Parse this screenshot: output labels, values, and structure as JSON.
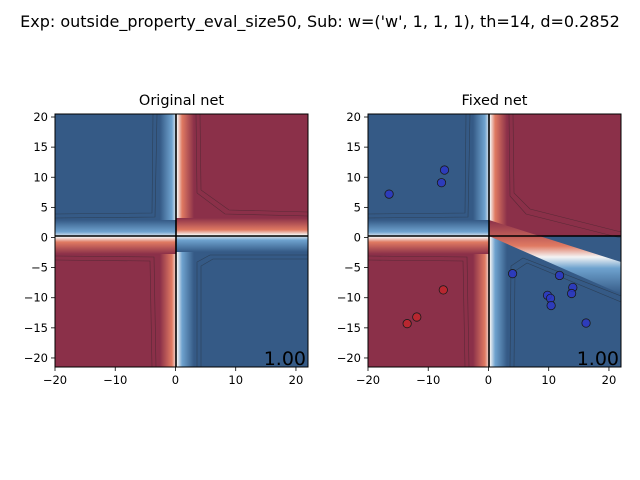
{
  "suptitle": "Exp: outside_property_eval_size50, Sub: w=('w', 1, 1, 1), th=14, d=0.2852",
  "colors": {
    "red": "#8b3049",
    "blue": "#355a86",
    "red_point": "#c0262b",
    "blue_point": "#2b37c4"
  },
  "chart_data": [
    {
      "type": "contour",
      "title": "Original net",
      "xlim": [
        -20,
        22
      ],
      "ylim": [
        -21.5,
        20.5
      ],
      "xticks": [
        -20,
        -10,
        0,
        10,
        20
      ],
      "yticks": [
        20,
        15,
        10,
        5,
        0,
        -5,
        -10,
        -15,
        -20
      ],
      "xtick_labels": [
        "−20",
        "−10",
        "0",
        "10",
        "20"
      ],
      "ytick_labels": [
        "20",
        "15",
        "10",
        "5",
        "0",
        "−5",
        "−10",
        "−15",
        "−20"
      ],
      "quadrants": {
        "top_left": "blue",
        "top_right": "red",
        "bottom_left": "red",
        "bottom_right": "blue"
      },
      "score": "1.00",
      "points": []
    },
    {
      "type": "contour",
      "title": "Fixed net",
      "xlim": [
        -20,
        22
      ],
      "ylim": [
        -21.5,
        20.5
      ],
      "xticks": [
        -20,
        -10,
        0,
        10,
        20
      ],
      "yticks": [
        20,
        15,
        10,
        5,
        0,
        -5,
        -10,
        -15,
        -20
      ],
      "xtick_labels": [
        "−20",
        "−10",
        "0",
        "10",
        "20"
      ],
      "ytick_labels": [
        "20",
        "15",
        "10",
        "5",
        "0",
        "−5",
        "−10",
        "−15",
        "−20"
      ],
      "quadrants": {
        "top_left": "blue",
        "top_right": "red",
        "bottom_left": "red",
        "bottom_right": "blue"
      },
      "score": "1.00",
      "points": [
        {
          "x": -16.5,
          "y": 7.2,
          "class": "blue"
        },
        {
          "x": -7.3,
          "y": 11.2,
          "class": "blue"
        },
        {
          "x": -7.8,
          "y": 9.1,
          "class": "blue"
        },
        {
          "x": 4.0,
          "y": -6.0,
          "class": "blue"
        },
        {
          "x": 11.8,
          "y": -6.3,
          "class": "blue"
        },
        {
          "x": 14.0,
          "y": -8.3,
          "class": "blue"
        },
        {
          "x": 9.8,
          "y": -9.6,
          "class": "blue"
        },
        {
          "x": 13.8,
          "y": -9.3,
          "class": "blue"
        },
        {
          "x": 10.3,
          "y": -10.1,
          "class": "blue"
        },
        {
          "x": 10.4,
          "y": -11.3,
          "class": "blue"
        },
        {
          "x": 16.2,
          "y": -14.2,
          "class": "blue"
        },
        {
          "x": -7.5,
          "y": -8.7,
          "class": "red"
        },
        {
          "x": -11.9,
          "y": -13.2,
          "class": "red"
        },
        {
          "x": -13.5,
          "y": -14.3,
          "class": "red"
        }
      ]
    }
  ]
}
